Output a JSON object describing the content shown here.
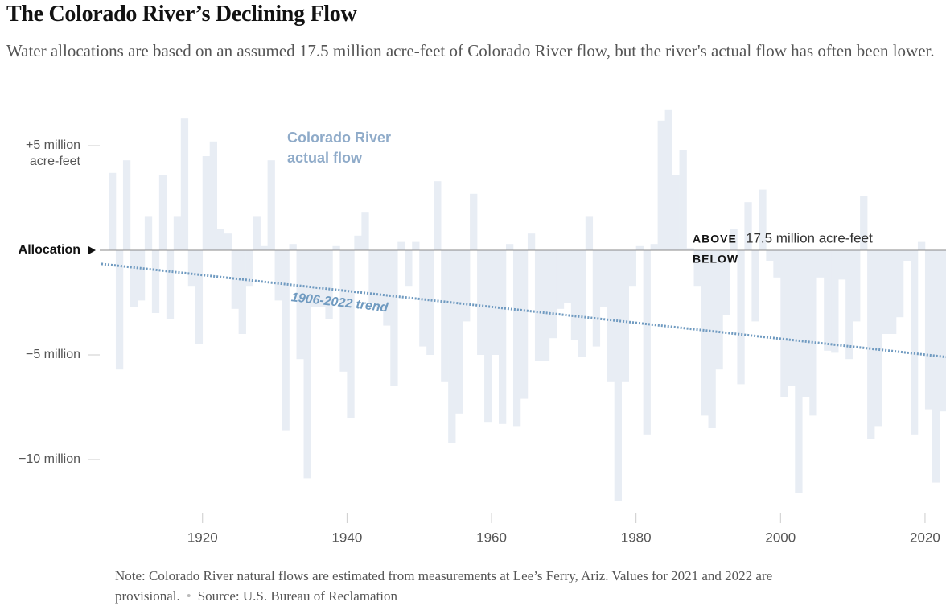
{
  "chart_data": {
    "type": "bar",
    "title": "The Colorado River’s Declining Flow",
    "subtitle": "Water allocations are based on an assumed 17.5 million acre-feet of Colorado River flow, but the river's actual flow has often been lower.",
    "x": [
      1907,
      1908,
      1909,
      1910,
      1911,
      1912,
      1913,
      1914,
      1915,
      1916,
      1917,
      1918,
      1919,
      1920,
      1921,
      1922,
      1923,
      1924,
      1925,
      1926,
      1927,
      1928,
      1929,
      1930,
      1931,
      1932,
      1933,
      1934,
      1935,
      1936,
      1937,
      1938,
      1939,
      1940,
      1941,
      1942,
      1943,
      1944,
      1945,
      1946,
      1947,
      1948,
      1949,
      1950,
      1951,
      1952,
      1953,
      1954,
      1955,
      1956,
      1957,
      1958,
      1959,
      1960,
      1961,
      1962,
      1963,
      1964,
      1965,
      1966,
      1967,
      1968,
      1969,
      1970,
      1971,
      1972,
      1973,
      1974,
      1975,
      1976,
      1977,
      1978,
      1979,
      1980,
      1981,
      1982,
      1983,
      1984,
      1985,
      1986,
      1987,
      1988,
      1989,
      1990,
      1991,
      1992,
      1993,
      1994,
      1995,
      1996,
      1997,
      1998,
      1999,
      2000,
      2001,
      2002,
      2003,
      2004,
      2005,
      2006,
      2007,
      2008,
      2009,
      2010,
      2011,
      2012,
      2013,
      2014,
      2015,
      2016,
      2017,
      2018,
      2019,
      2020,
      2021,
      2022
    ],
    "series": [
      {
        "name": "Colorado River actual flow",
        "color": "#e8edf4",
        "values": [
          3.7,
          -5.7,
          4.3,
          -2.7,
          -2.4,
          1.6,
          -3.0,
          3.6,
          -3.3,
          1.6,
          6.3,
          -1.7,
          -4.5,
          4.5,
          5.2,
          1.0,
          0.8,
          -2.8,
          -4.0,
          -1.7,
          1.6,
          0.2,
          4.3,
          -2.4,
          -8.6,
          0.3,
          -5.2,
          -10.9,
          -2.7,
          -2.7,
          -3.3,
          0.2,
          -5.8,
          -8.0,
          0.7,
          1.8,
          -2.5,
          -2.8,
          -3.6,
          -6.5,
          0.4,
          -1.7,
          0.4,
          -4.6,
          -5.0,
          3.3,
          -6.3,
          -9.2,
          -7.8,
          -3.4,
          2.7,
          -5.0,
          -8.2,
          -5.0,
          -8.3,
          0.3,
          -8.4,
          -7.1,
          0.8,
          -5.3,
          -5.3,
          -4.2,
          -2.8,
          -2.5,
          -4.3,
          -5.1,
          1.6,
          -4.6,
          -2.7,
          -6.3,
          -12.0,
          -6.3,
          -1.7,
          0.2,
          -8.8,
          0.3,
          6.2,
          6.7,
          3.6,
          4.8,
          0.1,
          -1.7,
          -7.9,
          -8.5,
          -5.7,
          -3.1,
          1.0,
          -6.4,
          2.3,
          -3.4,
          2.9,
          -0.5,
          -1.3,
          -7.0,
          -6.5,
          -11.6,
          -7.0,
          -7.9,
          -1.3,
          -4.8,
          -4.9,
          -1.4,
          -5.2,
          -3.4,
          2.6,
          -9.0,
          -8.4,
          -4.0,
          -4.0,
          -3.2,
          -0.5,
          -8.8,
          0.4,
          -7.6,
          -11.1,
          -7.7
        ]
      }
    ],
    "series_label_color": "#8fabc9",
    "trend": {
      "label": "1906-2022 trend",
      "color": "#6f9ac0",
      "x": [
        1906,
        2022.9
      ],
      "values": [
        -0.65,
        -5.1
      ]
    },
    "allocation": {
      "label": "Allocation",
      "value": 0,
      "above": "ABOVE",
      "text": "17.5 million acre-feet",
      "below": "BELOW"
    },
    "xlim": [
      1906,
      2022.9
    ],
    "xticks": [
      1920,
      1940,
      1960,
      1980,
      2000,
      2020
    ],
    "ylim": [
      -12.5,
      7
    ],
    "yticks": [
      {
        "value": 5,
        "label": "+5 million"
      },
      {
        "value": -5,
        "label": "−5 million"
      },
      {
        "value": -10,
        "label": "−10 million"
      }
    ],
    "y_unit": "acre-feet",
    "note": "Note: Colorado River natural flows are estimated from measurements at Lee’s Ferry, Ariz. Values for 2021 and 2022 are provisional.",
    "source": "Source: U.S. Bureau of Reclamation"
  }
}
